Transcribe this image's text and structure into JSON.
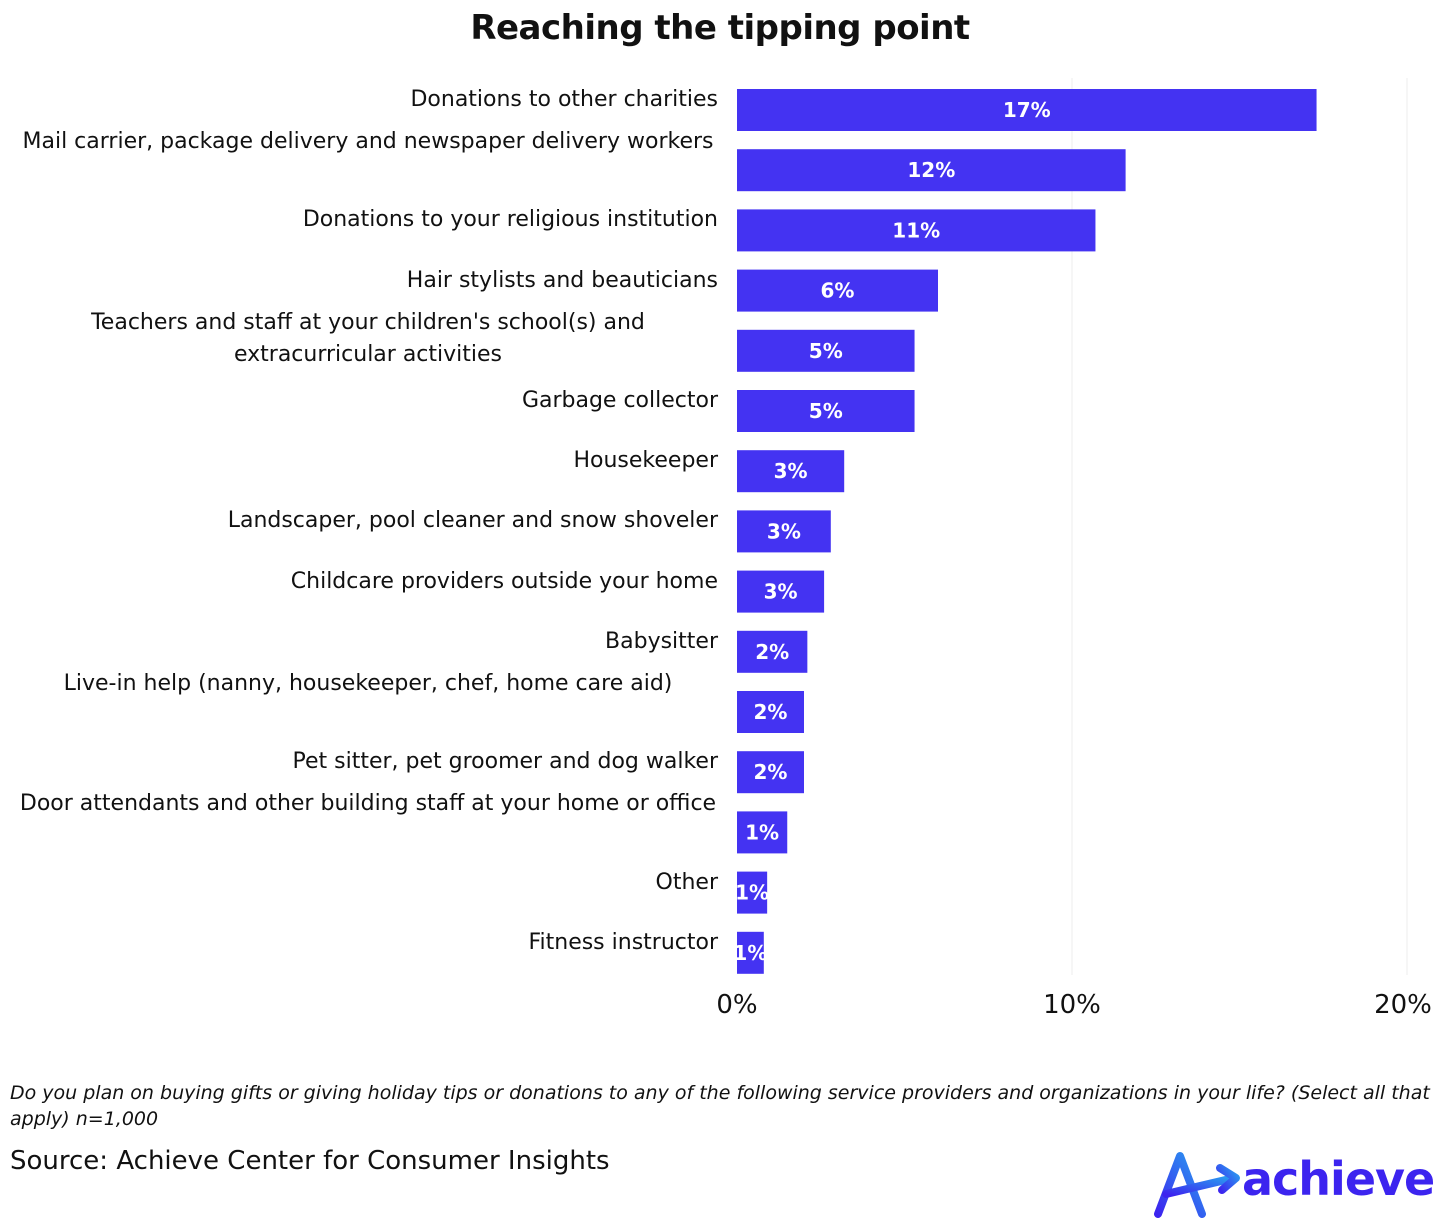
{
  "chart_data": {
    "type": "bar",
    "orientation": "horizontal",
    "title": "Reaching the tipping point",
    "categories": [
      "Donations to other charities",
      "Mail carrier, package delivery and newspaper delivery workers",
      "Donations to your religious institution",
      "Hair stylists and beauticians",
      "Teachers and staff at your children's school(s) and extracurricular activities",
      "Garbage collector",
      "Housekeeper",
      "Landscaper, pool cleaner and snow shoveler",
      "Childcare providers outside your home",
      "Babysitter",
      "Live-in help (nanny, housekeeper, chef, home care aid)",
      "Pet sitter, pet groomer and dog walker",
      "Door attendants and other building staff at your home or office",
      "Other",
      "Fitness instructor"
    ],
    "values": [
      17.3,
      11.6,
      10.7,
      6.0,
      5.3,
      5.3,
      3.2,
      2.8,
      2.6,
      2.1,
      2.0,
      2.0,
      1.5,
      0.9,
      0.8
    ],
    "value_labels": [
      "17%",
      "12%",
      "11%",
      "6%",
      "5%",
      "5%",
      "3%",
      "3%",
      "3%",
      "2%",
      "2%",
      "2%",
      "1%",
      "1%",
      "1%"
    ],
    "xlim": [
      0,
      20
    ],
    "xticks": [
      0,
      10,
      20
    ],
    "xtick_labels": [
      "0%",
      "10%",
      "20%"
    ],
    "xlabel": "",
    "ylabel": "",
    "bar_color": "#4433f2",
    "label_color": "#ffffff",
    "grid": true
  },
  "footer": {
    "question": "Do you plan on buying gifts or giving holiday tips or donations to any of the following service providers and organizations in your life? (Select all that apply) n=1,000",
    "source": "Source: Achieve Center for Consumer Insights"
  },
  "logo": {
    "text": "achieve",
    "icon": "achieve-arrow-logo-icon",
    "color": "#3c24ef",
    "accent": "#2a9ef0"
  }
}
